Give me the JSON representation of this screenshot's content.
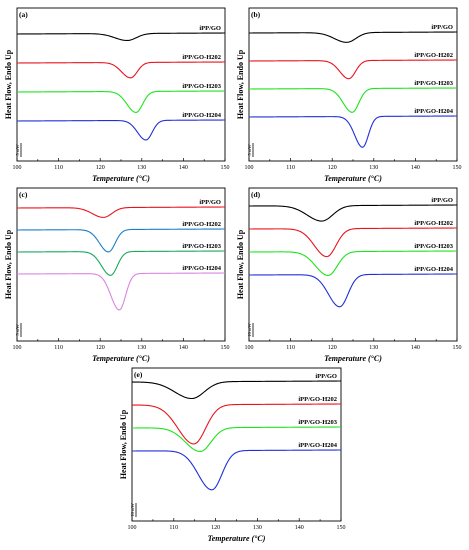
{
  "chart_data": [
    {
      "type": "line",
      "panel_label": "(a)",
      "xlabel": "Temperature (°C)",
      "ylabel": "Heat Flow, Endo Up",
      "xlim": [
        100,
        150
      ],
      "xticks": [
        "100",
        "110",
        "120",
        "130",
        "140",
        "150"
      ],
      "scale_bar": "5 mW",
      "series": [
        {
          "name": "iPP/GO",
          "color": "#000000",
          "baseline": 0,
          "peak_x": 126.5,
          "peak_depth": 0.25,
          "width": 2.2
        },
        {
          "name": "iPP/GO-H202",
          "color": "#e8141c",
          "baseline": 1,
          "peak_x": 127.3,
          "peak_depth": 0.55,
          "width": 1.6
        },
        {
          "name": "iPP/GO-H203",
          "color": "#1ee41e",
          "baseline": 2,
          "peak_x": 128.6,
          "peak_depth": 0.75,
          "width": 1.6
        },
        {
          "name": "iPP/GO-H204",
          "color": "#2030d8",
          "baseline": 3,
          "peak_x": 131.0,
          "peak_depth": 0.7,
          "width": 1.5
        }
      ]
    },
    {
      "type": "line",
      "panel_label": "(b)",
      "xlabel": "Temperature (°C)",
      "ylabel": "Heat Flow, Endo Up",
      "xlim": [
        100,
        150
      ],
      "xticks": [
        "100",
        "110",
        "120",
        "130",
        "140",
        "150"
      ],
      "scale_bar": "5 mW",
      "series": [
        {
          "name": "iPP/GO",
          "color": "#000000",
          "baseline": 0,
          "peak_x": 123.5,
          "peak_depth": 0.35,
          "width": 2.2
        },
        {
          "name": "iPP/GO-H202",
          "color": "#e8141c",
          "baseline": 1,
          "peak_x": 124.0,
          "peak_depth": 0.65,
          "width": 1.6
        },
        {
          "name": "iPP/GO-H203",
          "color": "#1ee41e",
          "baseline": 2,
          "peak_x": 124.8,
          "peak_depth": 0.85,
          "width": 1.6
        },
        {
          "name": "iPP/GO-H204",
          "color": "#2030d8",
          "baseline": 3,
          "peak_x": 127.3,
          "peak_depth": 1.1,
          "width": 1.4
        }
      ]
    },
    {
      "type": "line",
      "panel_label": "(c)",
      "xlabel": "Temperature (°C)",
      "ylabel": "Heat Flow, Endo Up",
      "xlim": [
        100,
        150
      ],
      "xticks": [
        "100",
        "110",
        "120",
        "130",
        "140",
        "150"
      ],
      "scale_bar": "5 mW",
      "series": [
        {
          "name": "iPP/GO",
          "color": "#e8141c",
          "baseline": 0,
          "peak_x": 120.8,
          "peak_depth": 0.35,
          "width": 2.0
        },
        {
          "name": "iPP/GO-H202",
          "color": "#1a7fc8",
          "baseline": 1,
          "peak_x": 122.0,
          "peak_depth": 0.8,
          "width": 1.6
        },
        {
          "name": "iPP/GO-H203",
          "color": "#17a85c",
          "baseline": 2,
          "peak_x": 122.5,
          "peak_depth": 0.85,
          "width": 1.6
        },
        {
          "name": "iPP/GO-H204",
          "color": "#d985e0",
          "baseline": 3,
          "peak_x": 124.6,
          "peak_depth": 1.3,
          "width": 1.5
        }
      ]
    },
    {
      "type": "line",
      "panel_label": "(d)",
      "xlabel": "Temperature (°C)",
      "ylabel": "Heat Flow, Endo Up",
      "xlim": [
        100,
        150
      ],
      "xticks": [
        "100",
        "110",
        "120",
        "130",
        "140",
        "150"
      ],
      "scale_bar": "10 mW",
      "series": [
        {
          "name": "iPP/GO",
          "color": "#000000",
          "baseline": 0,
          "peak_x": 117.5,
          "peak_depth": 0.55,
          "width": 2.6
        },
        {
          "name": "iPP/GO-H202",
          "color": "#e8141c",
          "baseline": 1,
          "peak_x": 118.7,
          "peak_depth": 1.0,
          "width": 2.2
        },
        {
          "name": "iPP/GO-H203",
          "color": "#1ee41e",
          "baseline": 2,
          "peak_x": 119.0,
          "peak_depth": 0.85,
          "width": 2.2
        },
        {
          "name": "iPP/GO-H204",
          "color": "#2030d8",
          "baseline": 3,
          "peak_x": 121.8,
          "peak_depth": 1.15,
          "width": 2.0
        }
      ]
    },
    {
      "type": "line",
      "panel_label": "(e)",
      "xlabel": "Temperature (°C)",
      "ylabel": "Heat Flow, Endo Up",
      "xlim": [
        100,
        150
      ],
      "xticks": [
        "100",
        "110",
        "120",
        "130",
        "140",
        "150"
      ],
      "scale_bar": "10 mW",
      "series": [
        {
          "name": "iPP/GO",
          "color": "#000000",
          "baseline": 0,
          "peak_x": 114.3,
          "peak_depth": 0.6,
          "width": 3.0
        },
        {
          "name": "iPP/GO-H202",
          "color": "#e8141c",
          "baseline": 1,
          "peak_x": 114.8,
          "peak_depth": 1.4,
          "width": 2.8
        },
        {
          "name": "iPP/GO-H203",
          "color": "#1ee41e",
          "baseline": 2,
          "peak_x": 116.3,
          "peak_depth": 0.85,
          "width": 2.6
        },
        {
          "name": "iPP/GO-H204",
          "color": "#2030d8",
          "baseline": 3,
          "peak_x": 119.1,
          "peak_depth": 1.4,
          "width": 2.4
        }
      ]
    }
  ]
}
